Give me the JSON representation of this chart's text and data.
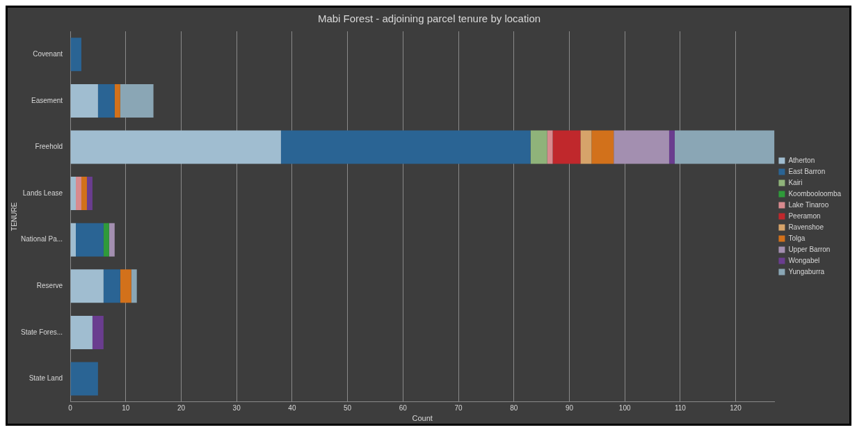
{
  "chart_data": {
    "type": "bar",
    "title": "Mabi Forest - adjoining parcel tenure by location",
    "xlabel": "Count",
    "ylabel": "TENURE",
    "orientation": "horizontal",
    "stacked": true,
    "categories": [
      "Covenant",
      "Easement",
      "Freehold",
      "Lands Lease",
      "National Pa...",
      "Reserve",
      "State Fores...",
      "State Land"
    ],
    "series": [
      {
        "name": "Atherton",
        "color": "#a0bdd0",
        "values": [
          null,
          5,
          38,
          1,
          1,
          6,
          4,
          null
        ]
      },
      {
        "name": "East Barron",
        "color": "#2a6494",
        "values": [
          2,
          3,
          45,
          null,
          5,
          3,
          null,
          5
        ]
      },
      {
        "name": "Kairi",
        "color": "#8fb37a",
        "values": [
          null,
          null,
          3,
          null,
          null,
          null,
          null,
          null
        ]
      },
      {
        "name": "Koombooloomba",
        "color": "#2f9a3a",
        "values": [
          null,
          null,
          null,
          null,
          1,
          null,
          null,
          null
        ]
      },
      {
        "name": "Lake Tinaroo",
        "color": "#d88a8e",
        "values": [
          null,
          null,
          1,
          1,
          null,
          null,
          null,
          null
        ]
      },
      {
        "name": "Peeramon",
        "color": "#c0282c",
        "values": [
          null,
          null,
          5,
          null,
          null,
          null,
          null,
          null
        ]
      },
      {
        "name": "Ravenshoe",
        "color": "#d6a36a",
        "values": [
          null,
          null,
          2,
          null,
          null,
          null,
          null,
          null
        ]
      },
      {
        "name": "Tolga",
        "color": "#d2711b",
        "values": [
          null,
          1,
          4,
          1,
          null,
          2,
          null,
          null
        ]
      },
      {
        "name": "Upper Barron",
        "color": "#a38fb0",
        "values": [
          null,
          null,
          10,
          null,
          1,
          null,
          null,
          null
        ]
      },
      {
        "name": "Wongabel",
        "color": "#6a3d8f",
        "values": [
          null,
          null,
          1,
          1,
          null,
          null,
          2,
          null
        ]
      },
      {
        "name": "Yungaburra",
        "color": "#8aa6b5",
        "values": [
          null,
          6,
          18,
          null,
          null,
          1,
          null,
          null
        ]
      }
    ],
    "xlim": [
      0,
      127
    ],
    "xticks": [
      0,
      10,
      20,
      30,
      40,
      50,
      60,
      70,
      80,
      90,
      100,
      110,
      120
    ],
    "grid": "x",
    "legend": "right"
  }
}
